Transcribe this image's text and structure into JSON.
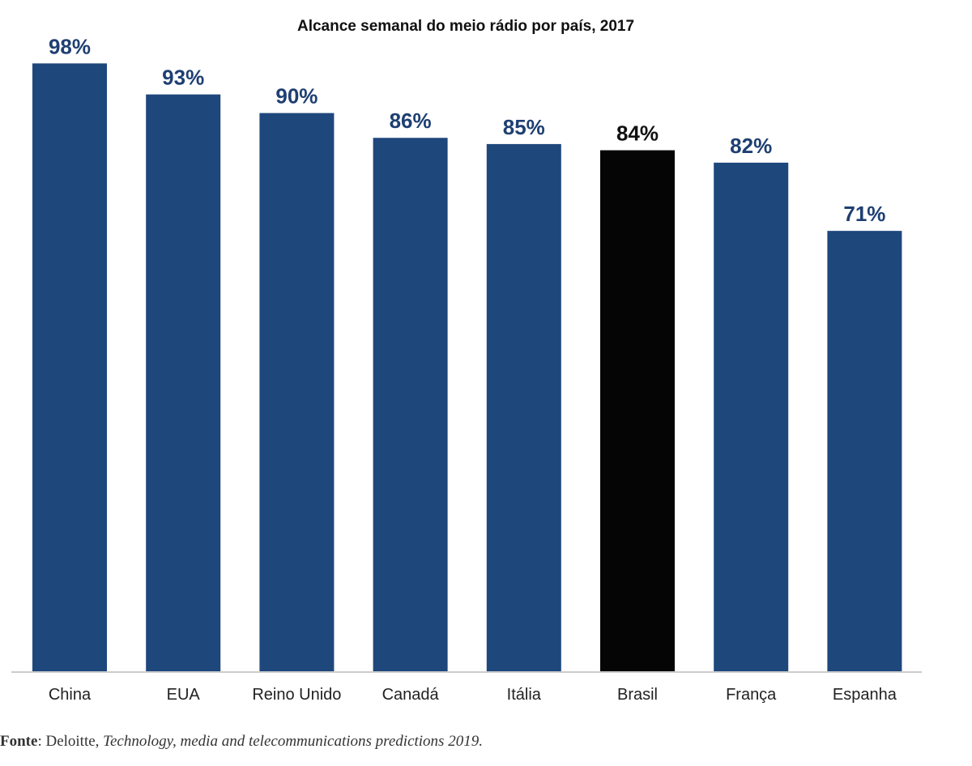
{
  "chart_data": {
    "type": "bar",
    "title": "Alcance semanal do meio rádio por país, 2017",
    "categories": [
      "China",
      "EUA",
      "Reino Unido",
      "Canadá",
      "Itália",
      "Brasil",
      "França",
      "Espanha"
    ],
    "values": [
      98,
      93,
      90,
      86,
      85,
      84,
      82,
      71
    ],
    "value_labels": [
      "98%",
      "93%",
      "90%",
      "86%",
      "85%",
      "84%",
      "82%",
      "71%"
    ],
    "highlight_category": "Brasil",
    "ylim": [
      0,
      100
    ],
    "grid": false,
    "colors": {
      "bar": "#1e477c",
      "highlight_bar": "#050505",
      "label": "#1e3f72",
      "highlight_label": "#111111",
      "axis": "#cccccc"
    }
  },
  "source": {
    "label": "Fonte",
    "separator": ": ",
    "author": "Deloitte, ",
    "title": "Technology, media and telecommunications predictions 2019."
  }
}
